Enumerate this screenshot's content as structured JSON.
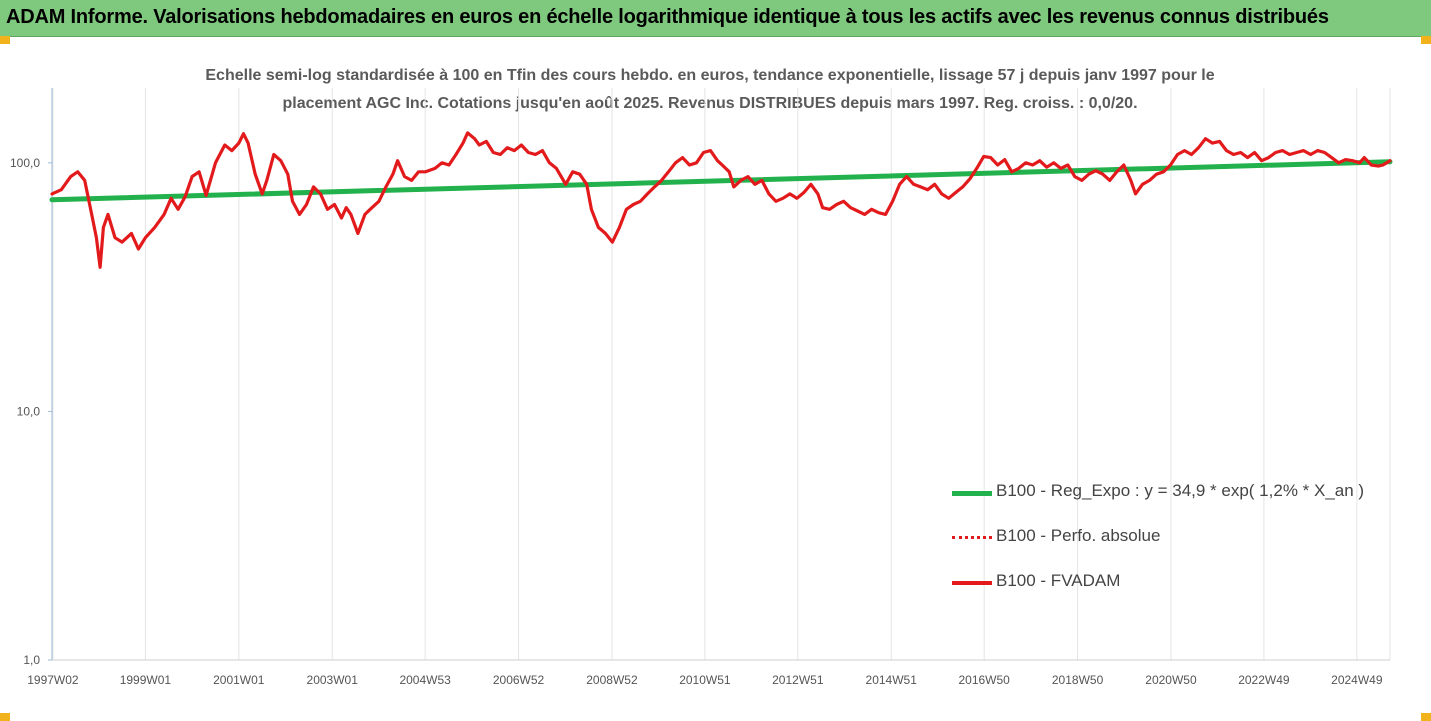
{
  "header": {
    "title": "ADAM Informe. Valorisations hebdomadaires en euros en échelle logarithmique identique à tous les actifs avec les revenus connus distribués"
  },
  "colors": {
    "header_bg": "#7fc97f",
    "accent_corner": "#f2b21b",
    "regression_line": "#22b14c",
    "performance_line": "#e31a1c"
  },
  "chart_data": {
    "type": "line",
    "title": "Echelle semi-log standardisée à 100 en Tfin des cours hebdo. en euros, tendance exponentielle, lissage 57 j depuis janv 1997 pour le placement AGC Inc. Cotations jusqu'en août 2025. Revenus DISTRIBUES depuis mars 1997. Reg. croiss. : 0,0/20.",
    "title_line1": "Echelle semi-log standardisée à 100 en Tfin des cours hebdo. en euros, tendance exponentielle, lissage 57 j depuis janv 1997 pour le",
    "title_line2": "placement AGC Inc. Cotations jusqu'en août 2025. Revenus DISTRIBUES depuis mars 1997. Reg. croiss. : 0,0/20.",
    "y_scale": "log",
    "ylim": [
      1,
      200
    ],
    "xlim": [
      1997.0,
      2025.65
    ],
    "grid": "vertical",
    "legend_position": "bottom-right",
    "y_ticks": [
      {
        "value": 1,
        "label": "1,0"
      },
      {
        "value": 10,
        "label": "10,0"
      },
      {
        "value": 100,
        "label": "100,0"
      }
    ],
    "x_ticks": [
      {
        "value": 1997.02,
        "label": "1997W02"
      },
      {
        "value": 1999.0,
        "label": "1999W01"
      },
      {
        "value": 2001.0,
        "label": "2001W01"
      },
      {
        "value": 2003.0,
        "label": "2003W01"
      },
      {
        "value": 2004.99,
        "label": "2004W53"
      },
      {
        "value": 2006.99,
        "label": "2006W52"
      },
      {
        "value": 2008.99,
        "label": "2008W52"
      },
      {
        "value": 2010.98,
        "label": "2010W51"
      },
      {
        "value": 2012.97,
        "label": "2012W51"
      },
      {
        "value": 2014.97,
        "label": "2014W51"
      },
      {
        "value": 2016.96,
        "label": "2016W50"
      },
      {
        "value": 2018.96,
        "label": "2018W50"
      },
      {
        "value": 2020.96,
        "label": "2020W50"
      },
      {
        "value": 2022.95,
        "label": "2022W49"
      },
      {
        "value": 2024.94,
        "label": "2024W49"
      }
    ],
    "series": [
      {
        "name": "B100 - Reg_Expo : y = 34,9 * exp( 1,2% *  X_an )",
        "style": "solid",
        "color": "#22b14c",
        "points": [
          [
            1997.0,
            71
          ],
          [
            2025.65,
            101
          ]
        ]
      },
      {
        "name": "B100 - Perfo. absolue",
        "style": "dotted",
        "color": "#e31a1c",
        "points": []
      },
      {
        "name": "B100 - FVADAM",
        "style": "solid",
        "color": "#e31a1c",
        "points": [
          [
            1997.0,
            75
          ],
          [
            1997.2,
            78
          ],
          [
            1997.4,
            88
          ],
          [
            1997.55,
            92
          ],
          [
            1997.7,
            85
          ],
          [
            1997.85,
            62
          ],
          [
            1997.95,
            50
          ],
          [
            1998.03,
            38
          ],
          [
            1998.1,
            55
          ],
          [
            1998.2,
            62
          ],
          [
            1998.35,
            50
          ],
          [
            1998.5,
            48
          ],
          [
            1998.7,
            52
          ],
          [
            1998.85,
            45
          ],
          [
            1999.0,
            50
          ],
          [
            1999.2,
            55
          ],
          [
            1999.4,
            62
          ],
          [
            1999.55,
            72
          ],
          [
            1999.7,
            65
          ],
          [
            1999.85,
            73
          ],
          [
            2000.0,
            88
          ],
          [
            2000.15,
            92
          ],
          [
            2000.3,
            74
          ],
          [
            2000.5,
            100
          ],
          [
            2000.7,
            118
          ],
          [
            2000.85,
            112
          ],
          [
            2001.0,
            120
          ],
          [
            2001.1,
            131
          ],
          [
            2001.2,
            120
          ],
          [
            2001.35,
            90
          ],
          [
            2001.5,
            75
          ],
          [
            2001.6,
            85
          ],
          [
            2001.75,
            108
          ],
          [
            2001.9,
            102
          ],
          [
            2002.05,
            90
          ],
          [
            2002.15,
            70
          ],
          [
            2002.3,
            62
          ],
          [
            2002.45,
            68
          ],
          [
            2002.6,
            80
          ],
          [
            2002.75,
            75
          ],
          [
            2002.9,
            65
          ],
          [
            2003.05,
            68
          ],
          [
            2003.2,
            60
          ],
          [
            2003.3,
            66
          ],
          [
            2003.4,
            62
          ],
          [
            2003.55,
            52
          ],
          [
            2003.7,
            62
          ],
          [
            2003.85,
            66
          ],
          [
            2004.0,
            70
          ],
          [
            2004.15,
            80
          ],
          [
            2004.3,
            90
          ],
          [
            2004.4,
            102
          ],
          [
            2004.55,
            88
          ],
          [
            2004.7,
            85
          ],
          [
            2004.85,
            92
          ],
          [
            2005.0,
            92
          ],
          [
            2005.2,
            95
          ],
          [
            2005.35,
            100
          ],
          [
            2005.5,
            98
          ],
          [
            2005.65,
            108
          ],
          [
            2005.8,
            120
          ],
          [
            2005.9,
            132
          ],
          [
            2006.05,
            125
          ],
          [
            2006.15,
            118
          ],
          [
            2006.3,
            122
          ],
          [
            2006.45,
            110
          ],
          [
            2006.6,
            108
          ],
          [
            2006.75,
            115
          ],
          [
            2006.9,
            112
          ],
          [
            2007.05,
            118
          ],
          [
            2007.2,
            110
          ],
          [
            2007.35,
            108
          ],
          [
            2007.5,
            112
          ],
          [
            2007.65,
            100
          ],
          [
            2007.8,
            95
          ],
          [
            2008.0,
            82
          ],
          [
            2008.15,
            92
          ],
          [
            2008.3,
            90
          ],
          [
            2008.45,
            82
          ],
          [
            2008.55,
            65
          ],
          [
            2008.7,
            55
          ],
          [
            2008.85,
            52
          ],
          [
            2009.0,
            48
          ],
          [
            2009.15,
            55
          ],
          [
            2009.3,
            65
          ],
          [
            2009.45,
            68
          ],
          [
            2009.6,
            70
          ],
          [
            2009.75,
            75
          ],
          [
            2009.9,
            80
          ],
          [
            2010.05,
            85
          ],
          [
            2010.2,
            92
          ],
          [
            2010.35,
            100
          ],
          [
            2010.5,
            105
          ],
          [
            2010.65,
            98
          ],
          [
            2010.8,
            100
          ],
          [
            2010.95,
            110
          ],
          [
            2011.1,
            112
          ],
          [
            2011.25,
            102
          ],
          [
            2011.35,
            98
          ],
          [
            2011.5,
            92
          ],
          [
            2011.6,
            80
          ],
          [
            2011.75,
            85
          ],
          [
            2011.9,
            88
          ],
          [
            2012.05,
            82
          ],
          [
            2012.2,
            85
          ],
          [
            2012.35,
            75
          ],
          [
            2012.5,
            70
          ],
          [
            2012.65,
            72
          ],
          [
            2012.8,
            75
          ],
          [
            2012.95,
            72
          ],
          [
            2013.1,
            76
          ],
          [
            2013.25,
            82
          ],
          [
            2013.4,
            75
          ],
          [
            2013.5,
            66
          ],
          [
            2013.65,
            65
          ],
          [
            2013.8,
            68
          ],
          [
            2013.95,
            70
          ],
          [
            2014.1,
            66
          ],
          [
            2014.25,
            64
          ],
          [
            2014.4,
            62
          ],
          [
            2014.55,
            65
          ],
          [
            2014.7,
            63
          ],
          [
            2014.85,
            62
          ],
          [
            2015.0,
            70
          ],
          [
            2015.15,
            82
          ],
          [
            2015.3,
            88
          ],
          [
            2015.45,
            82
          ],
          [
            2015.6,
            80
          ],
          [
            2015.75,
            78
          ],
          [
            2015.9,
            82
          ],
          [
            2016.05,
            75
          ],
          [
            2016.2,
            72
          ],
          [
            2016.35,
            76
          ],
          [
            2016.5,
            80
          ],
          [
            2016.65,
            86
          ],
          [
            2016.8,
            95
          ],
          [
            2016.95,
            106
          ],
          [
            2017.1,
            105
          ],
          [
            2017.25,
            98
          ],
          [
            2017.4,
            103
          ],
          [
            2017.55,
            92
          ],
          [
            2017.7,
            95
          ],
          [
            2017.85,
            100
          ],
          [
            2018.0,
            98
          ],
          [
            2018.15,
            102
          ],
          [
            2018.3,
            96
          ],
          [
            2018.45,
            100
          ],
          [
            2018.6,
            95
          ],
          [
            2018.75,
            98
          ],
          [
            2018.9,
            88
          ],
          [
            2019.05,
            85
          ],
          [
            2019.2,
            90
          ],
          [
            2019.35,
            93
          ],
          [
            2019.5,
            90
          ],
          [
            2019.65,
            85
          ],
          [
            2019.8,
            92
          ],
          [
            2019.95,
            98
          ],
          [
            2020.1,
            85
          ],
          [
            2020.2,
            75
          ],
          [
            2020.35,
            82
          ],
          [
            2020.5,
            85
          ],
          [
            2020.65,
            90
          ],
          [
            2020.8,
            92
          ],
          [
            2020.95,
            98
          ],
          [
            2021.1,
            108
          ],
          [
            2021.25,
            112
          ],
          [
            2021.4,
            108
          ],
          [
            2021.55,
            115
          ],
          [
            2021.7,
            125
          ],
          [
            2021.85,
            120
          ],
          [
            2022.0,
            122
          ],
          [
            2022.15,
            112
          ],
          [
            2022.3,
            108
          ],
          [
            2022.45,
            110
          ],
          [
            2022.6,
            105
          ],
          [
            2022.75,
            110
          ],
          [
            2022.9,
            102
          ],
          [
            2023.05,
            105
          ],
          [
            2023.2,
            110
          ],
          [
            2023.35,
            112
          ],
          [
            2023.5,
            108
          ],
          [
            2023.65,
            110
          ],
          [
            2023.8,
            112
          ],
          [
            2023.95,
            108
          ],
          [
            2024.1,
            112
          ],
          [
            2024.25,
            110
          ],
          [
            2024.4,
            105
          ],
          [
            2024.55,
            100
          ],
          [
            2024.7,
            103
          ],
          [
            2024.85,
            102
          ],
          [
            2025.0,
            100
          ],
          [
            2025.1,
            105
          ],
          [
            2025.25,
            98
          ],
          [
            2025.4,
            97
          ],
          [
            2025.5,
            98
          ],
          [
            2025.65,
            102
          ]
        ]
      }
    ],
    "legend": [
      {
        "label": "B100 - Reg_Expo : y = 34,9 * exp( 1,2% *  X_an )",
        "style": "solid",
        "color": "#22b14c"
      },
      {
        "label": "B100 - Perfo. absolue",
        "style": "dotted",
        "color": "#e31a1c"
      },
      {
        "label": "B100 - FVADAM",
        "style": "solid",
        "color": "#e31a1c"
      }
    ]
  }
}
